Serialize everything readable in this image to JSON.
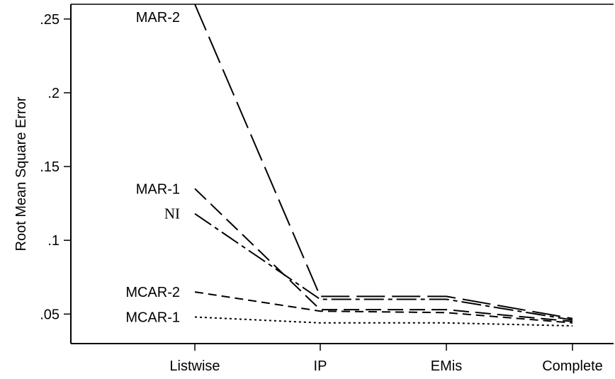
{
  "chart_data": {
    "type": "line",
    "title": "",
    "xlabel": "",
    "ylabel": "Root Mean Square Error",
    "categories": [
      "Listwise",
      "IP",
      "EMis",
      "Complete"
    ],
    "ylim": [
      0.03,
      0.26
    ],
    "yticks": [
      0.05,
      0.1,
      0.15,
      0.2,
      0.25
    ],
    "ytick_labels": [
      ".05",
      ".1",
      ".15",
      ".2",
      ".25"
    ],
    "grid": false,
    "legend": "none",
    "series": [
      {
        "name": "MAR-2",
        "values": [
          0.26,
          0.062,
          0.062,
          0.047
        ],
        "dash": "40 10",
        "label_font": "sans"
      },
      {
        "name": "MAR-1",
        "values": [
          0.135,
          0.053,
          0.053,
          0.045
        ],
        "dash": "22 9",
        "label_font": "sans"
      },
      {
        "name": "NI",
        "values": [
          0.118,
          0.06,
          0.06,
          0.046
        ],
        "dash": "28 6 6 6",
        "label_font": "serif"
      },
      {
        "name": "MCAR-2",
        "values": [
          0.065,
          0.052,
          0.051,
          0.044
        ],
        "dash": "12 7",
        "label_font": "sans"
      },
      {
        "name": "MCAR-1",
        "values": [
          0.048,
          0.044,
          0.044,
          0.042
        ],
        "dash": "3 4",
        "label_font": "sans"
      }
    ]
  }
}
